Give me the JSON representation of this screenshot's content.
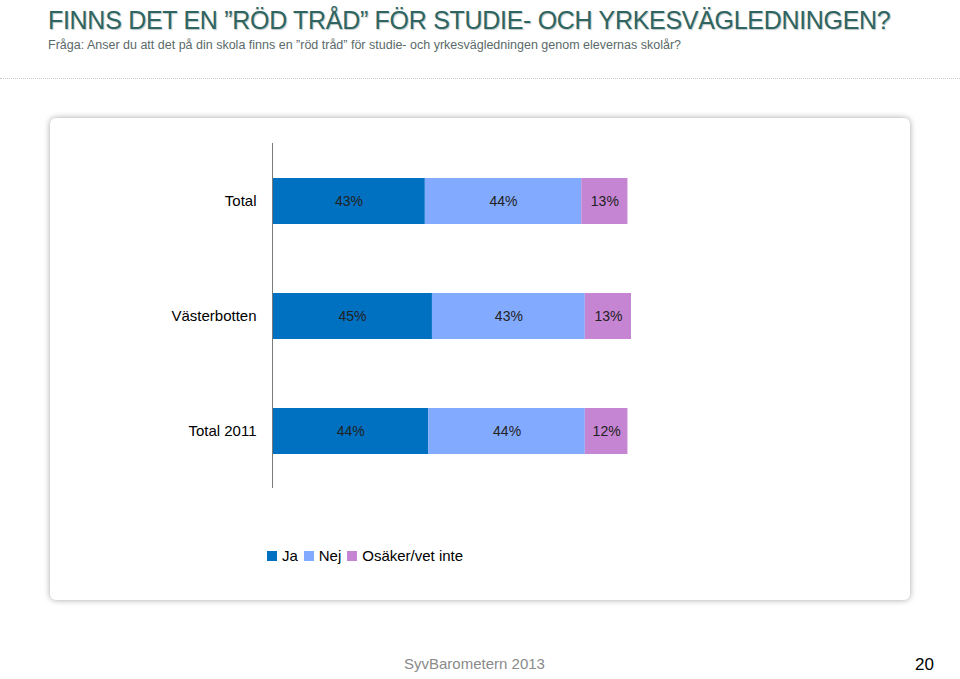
{
  "chart_data": {
    "type": "bar",
    "title": "FINNS DET EN ”RÖD TRÅD” FÖR STUDIE- OCH YRKESVÄGLEDNINGEN?",
    "subtitle": "Fråga: Anser du att det på din skola finns en ”röd tråd” för studie- och yrkesvägledningen genom elevernas skolår?",
    "orientation": "horizontal",
    "stacked": true,
    "data_labels": true,
    "tick_labels": "y",
    "legend": "bottom",
    "categories": [
      "Total",
      "Västerbotten",
      "Total 2011"
    ],
    "series": [
      {
        "name": "Ja",
        "color": "#0070c0",
        "values": [
          43,
          45,
          44
        ],
        "value_labels": [
          "43%",
          "45%",
          "44%"
        ]
      },
      {
        "name": "Nej",
        "color": "#82aaff",
        "values": [
          44,
          43,
          44
        ],
        "value_labels": [
          "44%",
          "43%",
          "44%"
        ]
      },
      {
        "name": "Osäker/vet inte",
        "color": "#c585d3",
        "values": [
          13,
          13,
          12
        ],
        "value_labels": [
          "13%",
          "13%",
          "12%"
        ]
      }
    ]
  },
  "footer": {
    "text": "SyvBarometern 2013",
    "page": "20"
  }
}
